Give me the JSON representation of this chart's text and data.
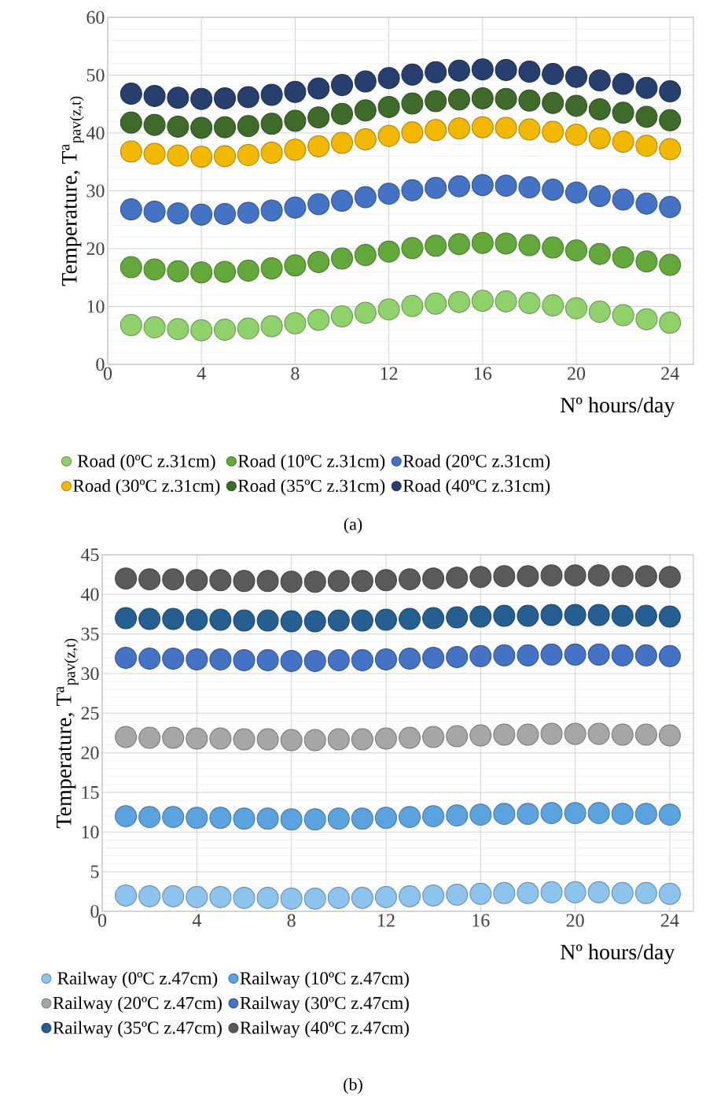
{
  "chart_data": [
    {
      "type": "scatter",
      "xlabel": "Nº hours/day",
      "ylabel": "Temperature, T$^{a}$$_{pav(z,t)}$",
      "annotations": [
        "(a)"
      ],
      "x": [
        1,
        2,
        3,
        4,
        5,
        6,
        7,
        8,
        9,
        10,
        11,
        12,
        13,
        14,
        15,
        16,
        17,
        18,
        19,
        20,
        21,
        22,
        23,
        24
      ],
      "xlim": [
        0,
        25
      ],
      "xticks": [
        0,
        4,
        8,
        12,
        16,
        20,
        24
      ],
      "ylim": [
        0,
        60
      ],
      "yticks": [
        0,
        10,
        20,
        30,
        40,
        50,
        60
      ],
      "grid": true,
      "legend": "bottom",
      "series": [
        {
          "name": "Road (0ºC z.31cm)",
          "color": "#8fd16a",
          "values": [
            6.8,
            6.4,
            6.1,
            5.9,
            6.0,
            6.2,
            6.6,
            7.1,
            7.7,
            8.3,
            8.9,
            9.5,
            10.1,
            10.5,
            10.8,
            11.0,
            10.9,
            10.6,
            10.2,
            9.7,
            9.1,
            8.5,
            7.8,
            7.2
          ]
        },
        {
          "name": "Road (10ºC z.31cm)",
          "color": "#62a83a",
          "values": [
            16.8,
            16.4,
            16.1,
            15.9,
            16.0,
            16.2,
            16.6,
            17.1,
            17.7,
            18.3,
            18.9,
            19.5,
            20.1,
            20.5,
            20.8,
            21.0,
            20.9,
            20.6,
            20.2,
            19.7,
            19.1,
            18.5,
            17.8,
            17.2
          ]
        },
        {
          "name": "Road (20ºC z.31cm)",
          "color": "#4472c4",
          "values": [
            26.8,
            26.4,
            26.1,
            25.9,
            26.0,
            26.2,
            26.6,
            27.1,
            27.7,
            28.3,
            28.9,
            29.5,
            30.1,
            30.5,
            30.8,
            31.0,
            30.9,
            30.6,
            30.2,
            29.7,
            29.1,
            28.5,
            27.8,
            27.2
          ]
        },
        {
          "name": "Road (30ºC z.31cm)",
          "color": "#f2b800",
          "values": [
            36.8,
            36.4,
            36.1,
            35.9,
            36.0,
            36.2,
            36.6,
            37.1,
            37.7,
            38.3,
            38.9,
            39.5,
            40.1,
            40.5,
            40.8,
            41.0,
            40.9,
            40.6,
            40.2,
            39.7,
            39.1,
            38.5,
            37.8,
            37.2
          ]
        },
        {
          "name": "Road (35ºC z.31cm)",
          "color": "#3f6b2a",
          "values": [
            41.8,
            41.4,
            41.1,
            40.9,
            41.0,
            41.2,
            41.6,
            42.1,
            42.7,
            43.3,
            43.9,
            44.5,
            45.1,
            45.5,
            45.8,
            46.0,
            45.9,
            45.6,
            45.2,
            44.7,
            44.1,
            43.5,
            42.8,
            42.2
          ]
        },
        {
          "name": "Road (40ºC z.31cm)",
          "color": "#263f6e",
          "values": [
            46.8,
            46.4,
            46.1,
            45.9,
            46.0,
            46.2,
            46.6,
            47.1,
            47.7,
            48.3,
            48.9,
            49.5,
            50.1,
            50.5,
            50.8,
            51.0,
            50.9,
            50.6,
            50.2,
            49.7,
            49.1,
            48.5,
            47.8,
            47.2
          ]
        }
      ]
    },
    {
      "type": "scatter",
      "xlabel": "Nº hours/day",
      "ylabel": "Temperature, T$^{a}$$_{pav(z,t)}$",
      "annotations": [
        "(b)"
      ],
      "x": [
        1,
        2,
        3,
        4,
        5,
        6,
        7,
        8,
        9,
        10,
        11,
        12,
        13,
        14,
        15,
        16,
        17,
        18,
        19,
        20,
        21,
        22,
        23,
        24
      ],
      "xlim": [
        0,
        25
      ],
      "xticks": [
        0,
        4,
        8,
        12,
        16,
        20,
        24
      ],
      "ylim": [
        0,
        45
      ],
      "yticks": [
        0,
        5,
        10,
        15,
        20,
        25,
        30,
        35,
        40,
        45
      ],
      "grid": true,
      "legend": "bottom",
      "series": [
        {
          "name": "Railway (0ºC z.47cm)",
          "color": "#8cc4ee",
          "values": [
            2.0,
            1.9,
            1.9,
            1.8,
            1.8,
            1.7,
            1.7,
            1.6,
            1.6,
            1.7,
            1.7,
            1.8,
            1.9,
            2.0,
            2.1,
            2.2,
            2.3,
            2.3,
            2.4,
            2.4,
            2.4,
            2.3,
            2.3,
            2.2
          ]
        },
        {
          "name": "Railway (10ºC z.47cm)",
          "color": "#5ba3de",
          "values": [
            12.0,
            11.9,
            11.9,
            11.8,
            11.8,
            11.7,
            11.7,
            11.6,
            11.6,
            11.7,
            11.7,
            11.8,
            11.9,
            12.0,
            12.1,
            12.2,
            12.3,
            12.3,
            12.4,
            12.4,
            12.4,
            12.3,
            12.3,
            12.2
          ]
        },
        {
          "name": "Railway (20ºC z.47cm)",
          "color": "#a6a6a6",
          "values": [
            22.0,
            21.9,
            21.9,
            21.8,
            21.8,
            21.7,
            21.7,
            21.6,
            21.6,
            21.7,
            21.7,
            21.8,
            21.9,
            22.0,
            22.1,
            22.2,
            22.3,
            22.3,
            22.4,
            22.4,
            22.4,
            22.3,
            22.3,
            22.2
          ]
        },
        {
          "name": "Railway (30ºC z.47cm)",
          "color": "#4472c4",
          "values": [
            32.0,
            31.9,
            31.9,
            31.8,
            31.8,
            31.7,
            31.7,
            31.6,
            31.6,
            31.7,
            31.7,
            31.8,
            31.9,
            32.0,
            32.1,
            32.2,
            32.3,
            32.3,
            32.4,
            32.4,
            32.4,
            32.3,
            32.3,
            32.2
          ]
        },
        {
          "name": "Railway (35ºC z.47cm)",
          "color": "#255e91",
          "values": [
            37.0,
            36.9,
            36.9,
            36.8,
            36.8,
            36.7,
            36.7,
            36.6,
            36.6,
            36.7,
            36.7,
            36.8,
            36.9,
            37.0,
            37.1,
            37.2,
            37.3,
            37.3,
            37.4,
            37.4,
            37.4,
            37.3,
            37.3,
            37.2
          ]
        },
        {
          "name": "Railway (40ºC z.47cm)",
          "color": "#5a5a5a",
          "values": [
            42.0,
            41.9,
            41.9,
            41.8,
            41.8,
            41.7,
            41.7,
            41.6,
            41.6,
            41.7,
            41.7,
            41.8,
            41.9,
            42.0,
            42.1,
            42.2,
            42.3,
            42.3,
            42.4,
            42.4,
            42.4,
            42.3,
            42.3,
            42.2
          ]
        }
      ]
    }
  ]
}
